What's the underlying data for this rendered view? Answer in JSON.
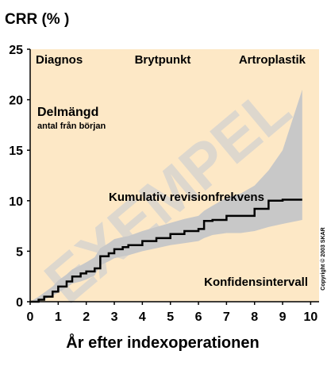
{
  "chart_data": {
    "type": "line",
    "title": "CRR (%  )",
    "x_label": "År efter indexoperationen",
    "annotations": [
      "Diagnos",
      "Brytpunkt",
      "Artroplastik",
      "Delmängd",
      "antal från början"
    ],
    "watermark": "EXEMPEL",
    "copyright": "Copyright © 2003 SKAR",
    "step": "post",
    "x": [
      0,
      0.3,
      0.5,
      0.8,
      1,
      1.3,
      1.5,
      1.8,
      2,
      2.3,
      2.5,
      2.8,
      3,
      3.3,
      3.5,
      4,
      4.5,
      5,
      5.5,
      6,
      6.2,
      6.5,
      7,
      7.5,
      8,
      8.5,
      9,
      9.7
    ],
    "series": [
      {
        "name": "Kumulativ revisionfrekvens",
        "color": "#000000",
        "values": [
          0,
          0.2,
          0.5,
          1,
          1.5,
          2,
          2.5,
          2.8,
          3,
          3.3,
          4.5,
          4.8,
          5.2,
          5.4,
          5.6,
          6,
          6.3,
          6.7,
          7,
          7.2,
          8,
          8.1,
          8.5,
          8.5,
          9.2,
          10,
          10.1,
          10.1
        ]
      }
    ],
    "band": {
      "name": "Konfidensintervall",
      "color": "#c8c8c8",
      "upper": [
        0,
        0.5,
        0.9,
        1.5,
        2.1,
        2.7,
        3.2,
        3.6,
        3.9,
        4.4,
        5.3,
        5.8,
        6.2,
        6.4,
        6.5,
        7,
        7.4,
        7.8,
        8.2,
        8.5,
        9,
        9.5,
        10.3,
        10.7,
        11.5,
        13,
        15,
        21
      ],
      "lower": [
        0,
        0,
        0.2,
        0.6,
        0.9,
        1.4,
        1.8,
        2,
        2.2,
        2.6,
        3.6,
        4,
        4.3,
        4.5,
        4.6,
        5,
        5.3,
        5.6,
        5.8,
        6,
        6.3,
        6.6,
        6.8,
        6.8,
        7,
        7.4,
        7.7,
        8.1
      ]
    },
    "xlim": [
      0,
      10.3
    ],
    "ylim": [
      0,
      25
    ],
    "xticks": [
      0,
      1,
      2,
      3,
      4,
      5,
      6,
      7,
      8,
      9,
      10
    ],
    "yticks": [
      0,
      5,
      10,
      15,
      20,
      25
    ],
    "background": "#fde8c6"
  }
}
